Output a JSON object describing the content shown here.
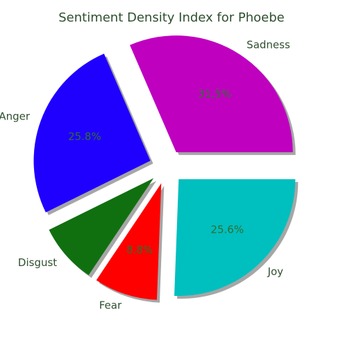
{
  "chart_data": {
    "type": "pie",
    "title": "Sentiment Density Index for Phoebe",
    "labels": [
      "Sadness",
      "Anger",
      "Disgust",
      "Fear",
      "Joy"
    ],
    "values": [
      31.5,
      25.8,
      8.3,
      8.8,
      25.6
    ],
    "pct_labels": [
      "31.5%",
      "25.8%",
      "",
      "8.8%",
      "25.6%"
    ],
    "colors": [
      "#bf00bf",
      "#1f00ff",
      "#107010",
      "#ff0000",
      "#00bfbf"
    ],
    "start_angle_deg": 0,
    "direction": "counterclockwise",
    "exploded": true,
    "shadow": true
  }
}
